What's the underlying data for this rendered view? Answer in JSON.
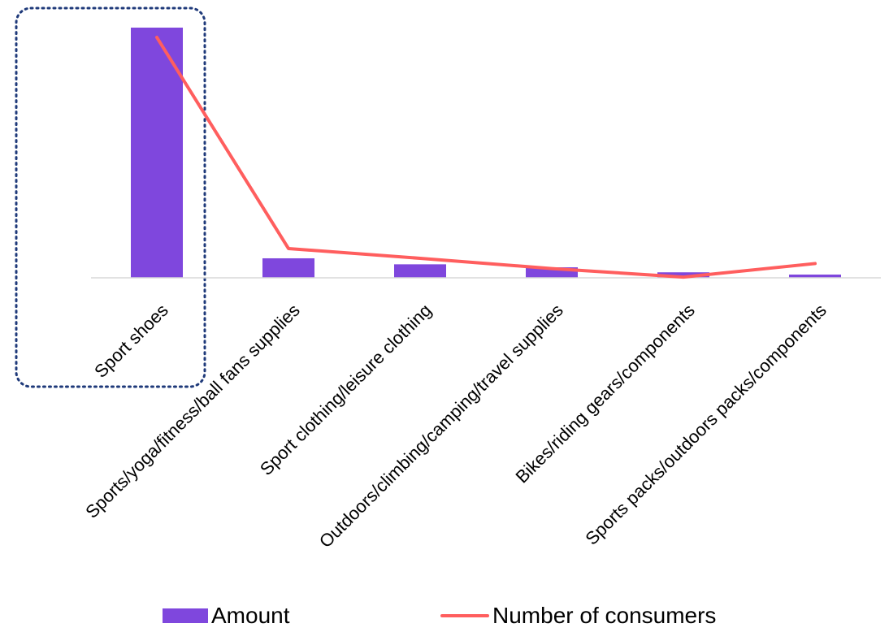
{
  "chart_data": {
    "type": "bar",
    "categories": [
      "Sport shoes",
      "Sports/yoga/fitness/ball fans supplies",
      "Sport clothing/leisure clothing",
      "Outdoors/climbing/camping/travel supplies",
      "Bikes/riding gears/components",
      "Sports packs/outdoors packs/components"
    ],
    "series": [
      {
        "name": "Amount",
        "type": "bar",
        "color": "#7f47dd",
        "values": [
          100,
          7.8,
          5.4,
          4.2,
          2.2,
          1.3
        ]
      },
      {
        "name": "Number of consumers",
        "type": "line",
        "color": "#ff5e5e",
        "values": [
          100,
          11.7,
          7.8,
          3.7,
          0.3,
          5.7
        ]
      }
    ],
    "ylim": [
      0,
      100
    ],
    "grid": false,
    "legend_position": "bottom",
    "highlight": {
      "category": "Sport shoes",
      "style": "dotted",
      "color": "#1f3a7a"
    }
  }
}
